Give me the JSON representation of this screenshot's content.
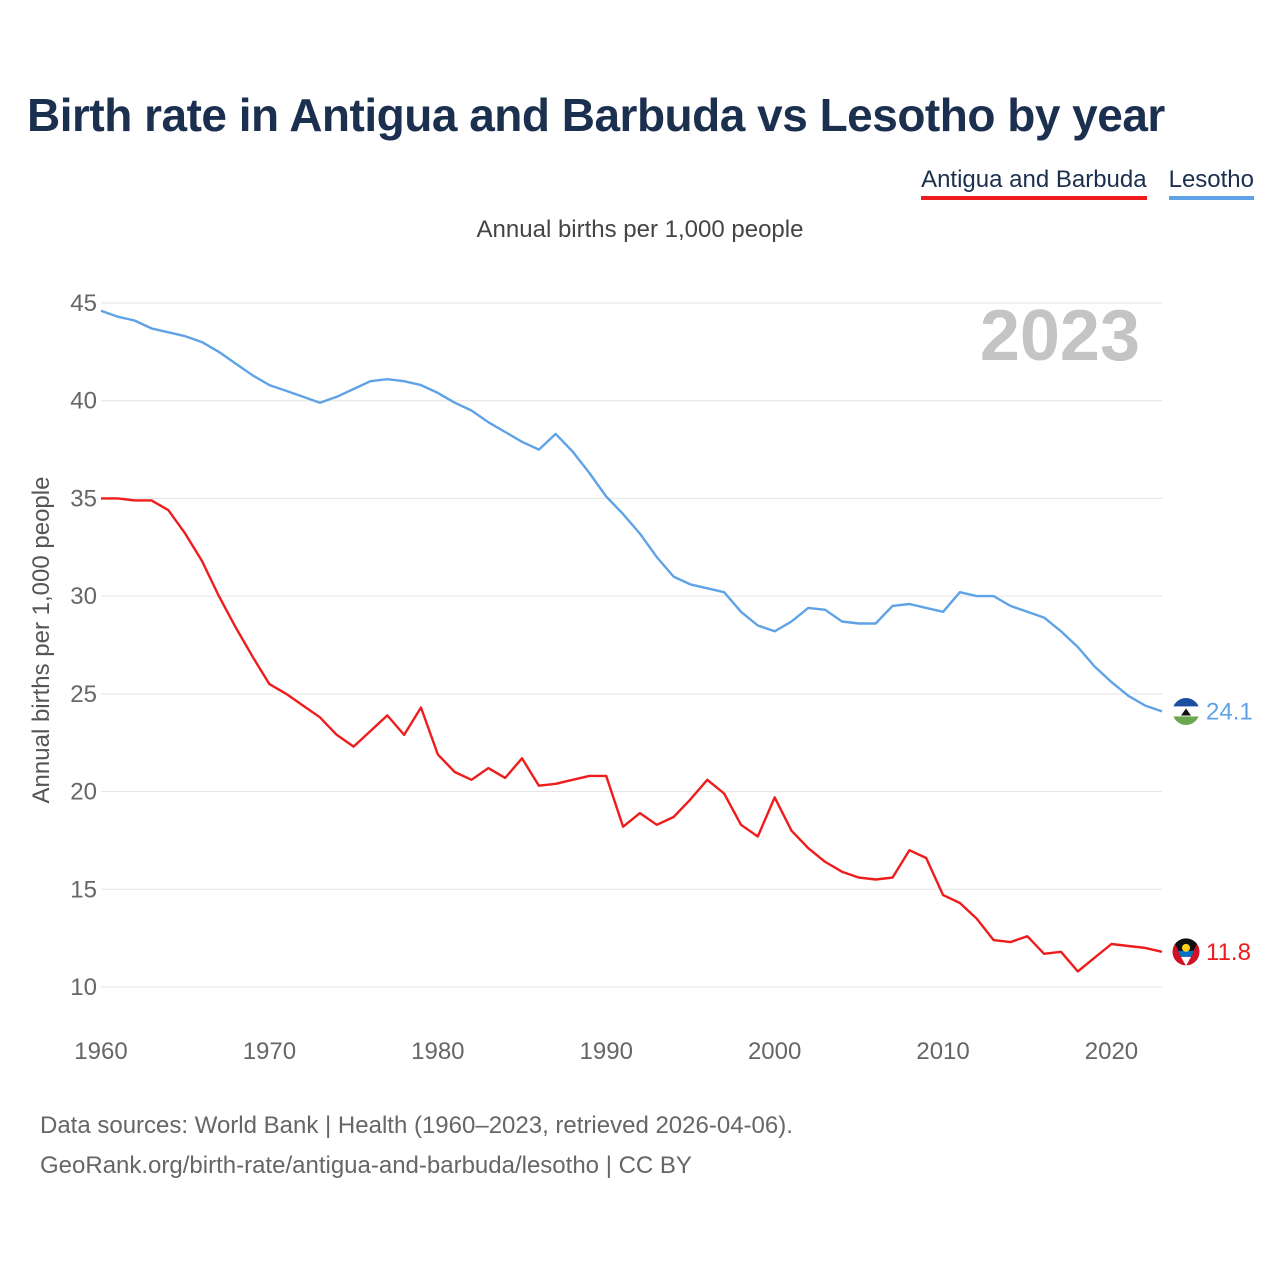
{
  "chart_data": {
    "type": "line",
    "title": "Birth rate in Antigua and Barbuda vs Lesotho by year",
    "subtitle": "Annual births per 1,000 people",
    "ylabel": "Annual births per 1,000 people",
    "xlabel": "",
    "year_badge": "2023",
    "xlim": [
      1960,
      2023
    ],
    "ylim": [
      10,
      45
    ],
    "xticks": [
      1960,
      1970,
      1980,
      1990,
      2000,
      2010,
      2020
    ],
    "yticks": [
      10,
      15,
      20,
      25,
      30,
      35,
      40,
      45
    ],
    "grid": true,
    "legend": "top-right",
    "x": [
      1960,
      1961,
      1962,
      1963,
      1964,
      1965,
      1966,
      1967,
      1968,
      1969,
      1970,
      1971,
      1972,
      1973,
      1974,
      1975,
      1976,
      1977,
      1978,
      1979,
      1980,
      1981,
      1982,
      1983,
      1984,
      1985,
      1986,
      1987,
      1988,
      1989,
      1990,
      1991,
      1992,
      1993,
      1994,
      1995,
      1996,
      1997,
      1998,
      1999,
      2000,
      2001,
      2002,
      2003,
      2004,
      2005,
      2006,
      2007,
      2008,
      2009,
      2010,
      2011,
      2012,
      2013,
      2014,
      2015,
      2016,
      2017,
      2018,
      2019,
      2020,
      2021,
      2022,
      2023
    ],
    "series": [
      {
        "name": "Antigua and Barbuda",
        "color": "#ee1c1c",
        "end_label": "11.8",
        "flag": "antigua-flag-icon",
        "values": [
          35.0,
          35.0,
          34.9,
          34.9,
          34.4,
          33.2,
          31.8,
          30.0,
          28.4,
          26.9,
          25.5,
          25.0,
          24.4,
          23.8,
          22.9,
          22.3,
          23.1,
          23.9,
          22.9,
          24.3,
          21.9,
          21.0,
          20.6,
          21.2,
          20.7,
          21.7,
          20.3,
          20.4,
          20.6,
          20.8,
          20.8,
          18.2,
          18.9,
          18.3,
          18.7,
          19.6,
          20.6,
          19.9,
          18.3,
          17.7,
          19.7,
          18.0,
          17.1,
          16.4,
          15.9,
          15.6,
          15.5,
          15.6,
          17.0,
          16.6,
          14.7,
          14.3,
          13.5,
          12.4,
          12.3,
          12.6,
          11.7,
          11.8,
          10.8,
          11.5,
          12.2,
          12.1,
          12.0,
          11.8
        ]
      },
      {
        "name": "Lesotho",
        "color": "#5fa3e6",
        "end_label": "24.1",
        "flag": "lesotho-flag-icon",
        "values": [
          44.6,
          44.3,
          44.1,
          43.7,
          43.5,
          43.3,
          43.0,
          42.5,
          41.9,
          41.3,
          40.8,
          40.5,
          40.2,
          39.9,
          40.2,
          40.6,
          41.0,
          41.1,
          41.0,
          40.8,
          40.4,
          39.9,
          39.5,
          38.9,
          38.4,
          37.9,
          37.5,
          38.3,
          37.4,
          36.3,
          35.1,
          34.2,
          33.2,
          32.0,
          31.0,
          30.6,
          30.4,
          30.2,
          29.2,
          28.5,
          28.2,
          28.7,
          29.4,
          29.3,
          28.7,
          28.6,
          28.6,
          29.5,
          29.6,
          29.4,
          29.2,
          30.2,
          30.0,
          30.0,
          29.5,
          29.2,
          28.9,
          28.2,
          27.4,
          26.4,
          25.6,
          24.9,
          24.4,
          24.1
        ]
      }
    ]
  },
  "footer": {
    "line1": "Data sources: World Bank | Health (1960–2023, retrieved 2026-04-06).",
    "line2": "GeoRank.org/birth-rate/antigua-and-barbuda/lesotho | CC BY"
  }
}
